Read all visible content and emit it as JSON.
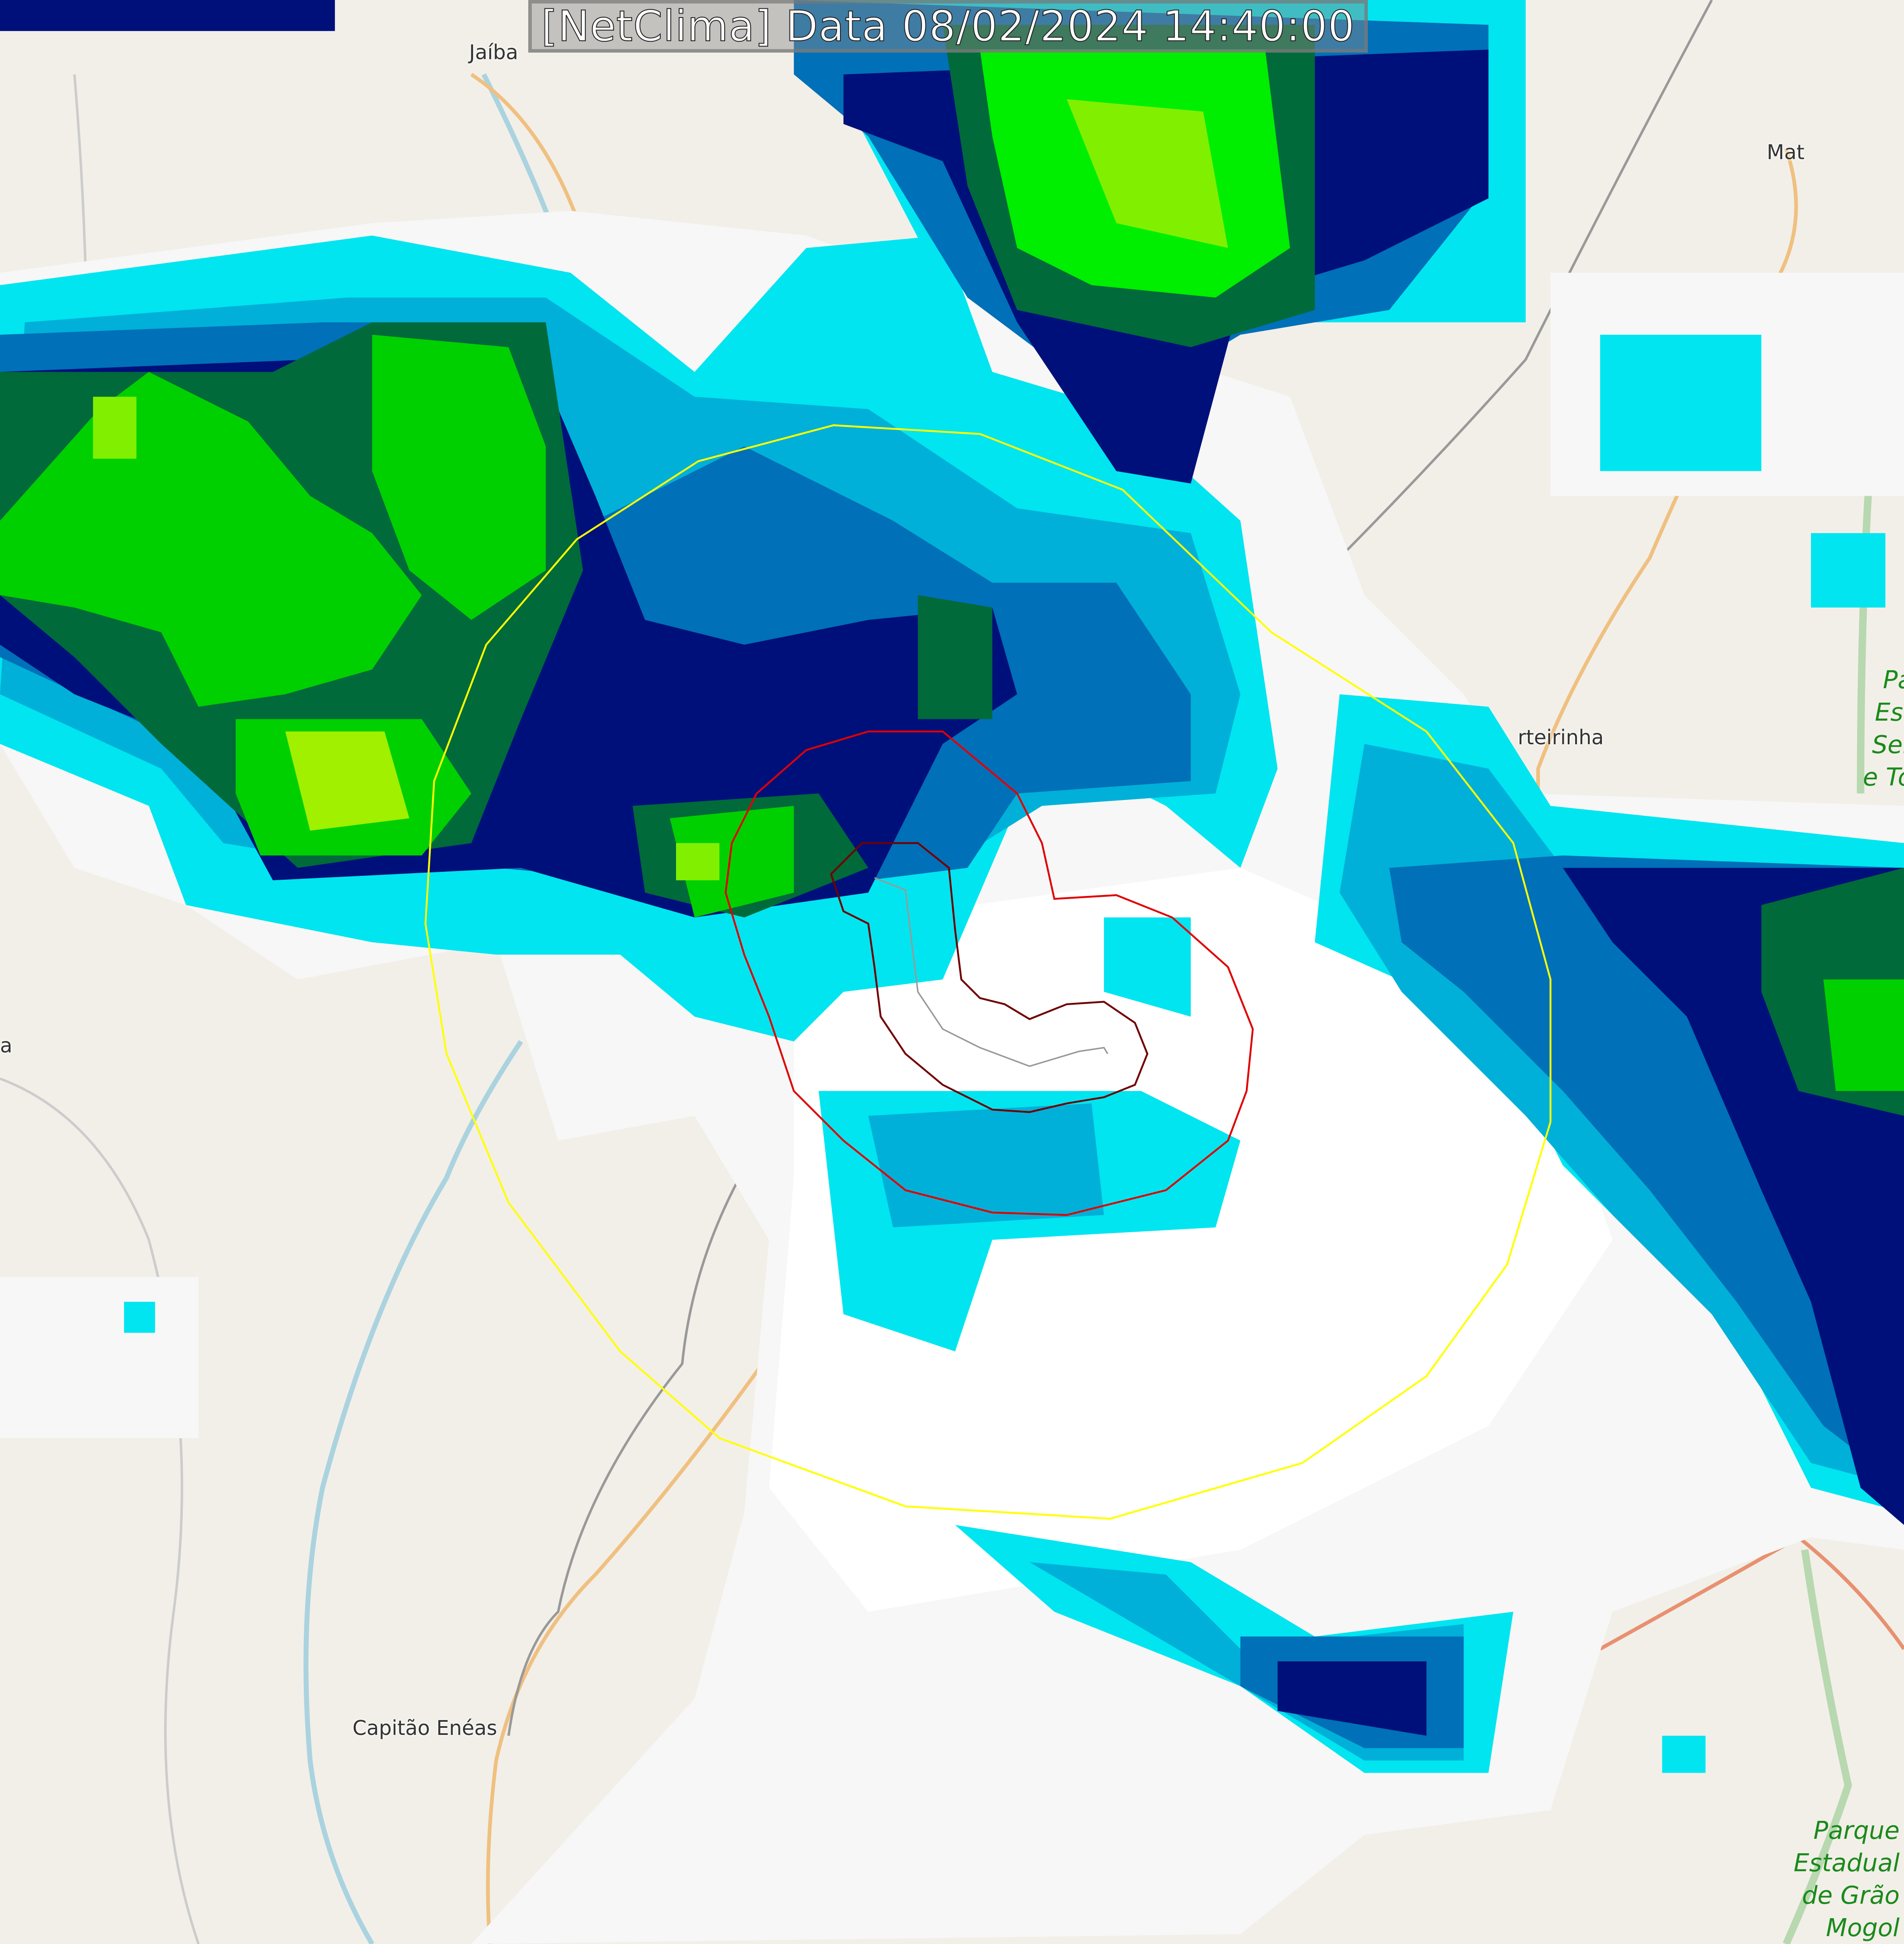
{
  "overlay": {
    "title": "[NetClima] Data 08/02/2024 14:40:00"
  },
  "map": {
    "places": [
      {
        "name": "Jaíba"
      },
      {
        "name": "Mat"
      },
      {
        "name": "rteirinha"
      },
      {
        "name": "Capitão Enéas"
      },
      {
        "name": "a"
      }
    ],
    "parks": [
      {
        "lines": [
          "Pa",
          "Est",
          "Ser",
          "e To"
        ]
      },
      {
        "lines": [
          "Parque",
          "Estadual",
          "de Grão",
          "Mogol"
        ]
      }
    ]
  },
  "colors": {
    "land": "#f2efe9",
    "radar_light": "#f7f7f7",
    "radar_cyan": "#00e5f0",
    "radar_teal": "#00b0d8",
    "radar_blue": "#0070b8",
    "radar_navy": "#00107a",
    "radar_darkgreen": "#006a3a",
    "radar_green": "#00d000",
    "radar_lime": "#a0f000",
    "range_ring": "#ffff00",
    "contour_outer": "#e00000",
    "contour_inner": "#700000",
    "track": "#999999"
  }
}
